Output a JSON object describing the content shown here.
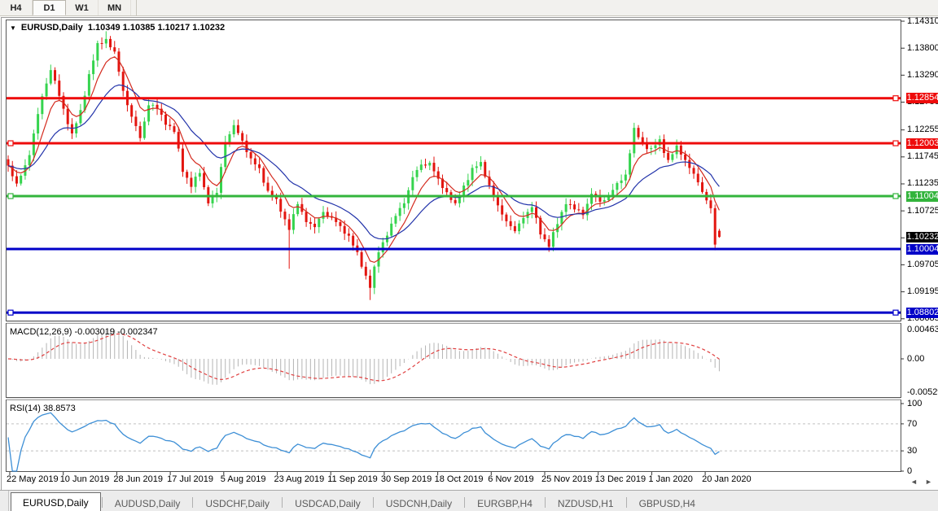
{
  "toolbar": {
    "buttons": [
      {
        "label": "H4",
        "active": false
      },
      {
        "label": "D1",
        "active": true
      },
      {
        "label": "W1",
        "active": false
      },
      {
        "label": "MN",
        "active": false
      }
    ]
  },
  "icons": {
    "dropdown": "▼",
    "scroll_left": "◄",
    "scroll_right": "►"
  },
  "chart_data": {
    "type": "candlestick",
    "symbol_title": "EURUSD,Daily",
    "ohlc_text": "1.10349 1.10385 1.10217 1.10232",
    "ohlc_current": {
      "o": 1.10349,
      "h": 1.10385,
      "l": 1.10217,
      "c": 1.10232
    },
    "num_candles": 168,
    "ylim": [
      1.08651,
      1.14326
    ],
    "y_ticks": [
      "1.14310",
      "1.13800",
      "1.13290",
      "1.12780",
      "1.12255",
      "1.11745",
      "1.11235",
      "1.10725",
      "1.10215",
      "1.09705",
      "1.09195",
      "1.08685"
    ],
    "x_labels": [
      "22 May 2019",
      "10 Jun 2019",
      "28 Jun 2019",
      "17 Jul 2019",
      "5 Aug 2019",
      "23 Aug 2019",
      "11 Sep 2019",
      "30 Sep 2019",
      "18 Oct 2019",
      "6 Nov 2019",
      "25 Nov 2019",
      "13 Dec 2019",
      "1 Jan 2020",
      "20 Jan 2020"
    ],
    "close_waypoints": [
      [
        0,
        1.1158
      ],
      [
        2,
        1.112
      ],
      [
        5,
        1.118
      ],
      [
        8,
        1.129
      ],
      [
        10,
        1.134
      ],
      [
        12,
        1.129
      ],
      [
        15,
        1.1216
      ],
      [
        17,
        1.126
      ],
      [
        19,
        1.133
      ],
      [
        21,
        1.1385
      ],
      [
        23,
        1.1398
      ],
      [
        25,
        1.137
      ],
      [
        27,
        1.13
      ],
      [
        29,
        1.125
      ],
      [
        31,
        1.121
      ],
      [
        33,
        1.1275
      ],
      [
        35,
        1.1265
      ],
      [
        37,
        1.124
      ],
      [
        39,
        1.1222
      ],
      [
        41,
        1.115
      ],
      [
        43,
        1.112
      ],
      [
        45,
        1.1145
      ],
      [
        47,
        1.109
      ],
      [
        49,
        1.1105
      ],
      [
        51,
        1.1205
      ],
      [
        53,
        1.1232
      ],
      [
        55,
        1.1205
      ],
      [
        57,
        1.117
      ],
      [
        59,
        1.115
      ],
      [
        61,
        1.111
      ],
      [
        63,
        1.109
      ],
      [
        66,
        1.104
      ],
      [
        68,
        1.1085
      ],
      [
        70,
        1.1055
      ],
      [
        72,
        1.104
      ],
      [
        74,
        1.1072
      ],
      [
        76,
        1.1058
      ],
      [
        78,
        1.1042
      ],
      [
        80,
        1.1025
      ],
      [
        82,
        1.099
      ],
      [
        85,
        1.093
      ],
      [
        87,
        1.0995
      ],
      [
        89,
        1.103
      ],
      [
        91,
        1.1062
      ],
      [
        93,
        1.109
      ],
      [
        95,
        1.1135
      ],
      [
        97,
        1.116
      ],
      [
        99,
        1.1163
      ],
      [
        101,
        1.113
      ],
      [
        103,
        1.1108
      ],
      [
        105,
        1.1082
      ],
      [
        107,
        1.112
      ],
      [
        109,
        1.115
      ],
      [
        111,
        1.1163
      ],
      [
        113,
        1.112
      ],
      [
        115,
        1.108
      ],
      [
        117,
        1.1055
      ],
      [
        119,
        1.1032
      ],
      [
        121,
        1.1062
      ],
      [
        123,
        1.108
      ],
      [
        125,
        1.103
      ],
      [
        127,
        1.1008
      ],
      [
        129,
        1.1048
      ],
      [
        131,
        1.109
      ],
      [
        133,
        1.1075
      ],
      [
        135,
        1.1068
      ],
      [
        137,
        1.1105
      ],
      [
        139,
        1.109
      ],
      [
        141,
        1.11
      ],
      [
        143,
        1.1122
      ],
      [
        145,
        1.1142
      ],
      [
        147,
        1.1225
      ],
      [
        149,
        1.12
      ],
      [
        151,
        1.1188
      ],
      [
        153,
        1.1205
      ],
      [
        155,
        1.1168
      ],
      [
        157,
        1.1192
      ],
      [
        159,
        1.117
      ],
      [
        161,
        1.114
      ],
      [
        163,
        1.111
      ],
      [
        165,
        1.1078
      ],
      [
        166,
        1.1005
      ],
      [
        167,
        1.10232
      ]
    ],
    "wick_overrides": {
      "23": {
        "h": 1.1412
      },
      "66": {
        "l": 1.0963
      },
      "85": {
        "l": 1.0904
      },
      "127": {
        "l": 1.0995
      },
      "147": {
        "h": 1.1239
      },
      "166": {
        "l": 1.0998
      }
    },
    "candle_colors": {
      "bull": "#35d44e",
      "bear": "#e3150f"
    },
    "hlines": [
      {
        "label": "1.12854",
        "price": 1.12854,
        "color": "#ee0b0b",
        "handles": "right"
      },
      {
        "label": "1.12003",
        "price": 1.12003,
        "color": "#ee0b0b",
        "handles": "both"
      },
      {
        "label": "1.11004",
        "price": 1.11004,
        "color": "#33b43c",
        "handles": "both"
      },
      {
        "label": "1.10004",
        "price": 1.10004,
        "color": "#0000c8",
        "handles": "none"
      },
      {
        "label": "1.08802",
        "price": 1.08802,
        "color": "#0000c8",
        "handles": "both"
      }
    ],
    "current_price": {
      "label": "1.10232",
      "value": 1.10232,
      "bg": "#000000"
    },
    "moving_averages": [
      {
        "name": "ma-fast",
        "period": 7,
        "color": "#d42a1e"
      },
      {
        "name": "ma-slow",
        "period": 20,
        "color": "#2233aa"
      }
    ],
    "macd": {
      "label": "MACD(12,26,9)",
      "values_text": "-0.003019 -0.002347",
      "fast": 12,
      "slow": 26,
      "signal": 9,
      "scale_labels": [
        "0.00463",
        "0.00",
        "-0.005299"
      ],
      "hist_color": "#b4b4b4",
      "signal_color": "#e04040"
    },
    "rsi": {
      "label": "RSI(14)",
      "value_text": "38.8573",
      "period": 14,
      "levels": [
        70,
        30
      ],
      "scale_labels": [
        "100",
        "70",
        "30",
        "0"
      ],
      "color": "#3d8fd6",
      "level_color": "#c0c0c0"
    }
  },
  "tabs": {
    "items": [
      {
        "label": "EURUSD,Daily",
        "active": true
      },
      {
        "label": "AUDUSD,Daily",
        "active": false
      },
      {
        "label": "USDCHF,Daily",
        "active": false
      },
      {
        "label": "USDCAD,Daily",
        "active": false
      },
      {
        "label": "USDCNH,Daily",
        "active": false
      },
      {
        "label": "EURGBP,H4",
        "active": false
      },
      {
        "label": "NZDUSD,H1",
        "active": false
      },
      {
        "label": "GBPUSD,H4",
        "active": false
      }
    ]
  }
}
